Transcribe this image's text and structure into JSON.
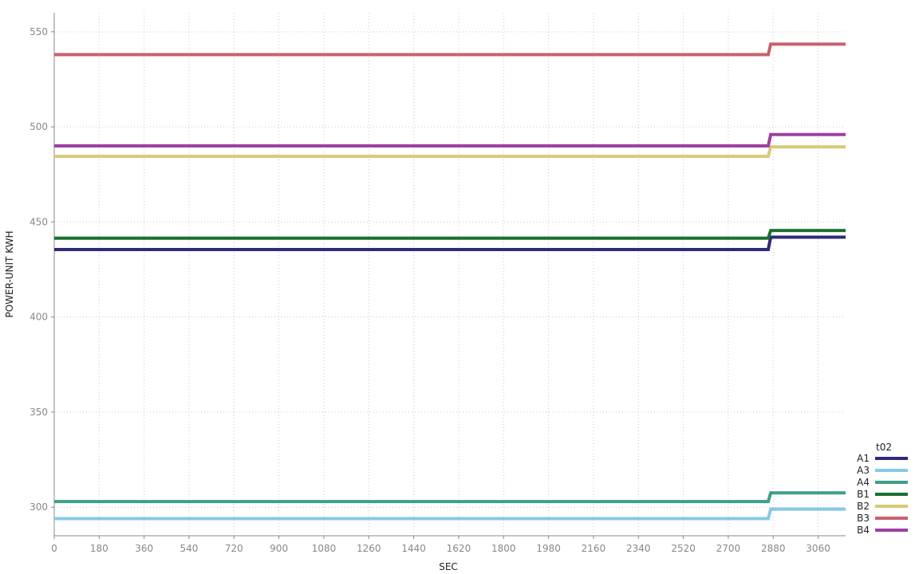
{
  "chart_data": {
    "type": "line",
    "title": "",
    "xlabel": "SEC",
    "ylabel": "POWER-UNIT KWH",
    "xlim": [
      0,
      3170
    ],
    "ylim": [
      285,
      560
    ],
    "x_ticks": [
      0,
      180,
      360,
      540,
      720,
      900,
      1080,
      1260,
      1440,
      1620,
      1800,
      1980,
      2160,
      2340,
      2520,
      2700,
      2880,
      3060
    ],
    "y_ticks": [
      300,
      350,
      400,
      450,
      500,
      550
    ],
    "grid": true,
    "legend": {
      "title": "t02",
      "placement": "bottom-right"
    },
    "series": [
      {
        "name": "A1",
        "color": "#2e2a7a",
        "x": [
          0,
          2860,
          2870,
          3170
        ],
        "values": [
          435.5,
          435.5,
          442,
          442
        ]
      },
      {
        "name": "A3",
        "color": "#87c8ea",
        "x": [
          0,
          2860,
          2870,
          3170
        ],
        "values": [
          294,
          294,
          299,
          299
        ]
      },
      {
        "name": "A4",
        "color": "#3f9e8c",
        "x": [
          0,
          2860,
          2870,
          3170
        ],
        "values": [
          303,
          303,
          307.5,
          307.5
        ]
      },
      {
        "name": "B1",
        "color": "#1a7030",
        "x": [
          0,
          2860,
          2870,
          3170
        ],
        "values": [
          441.5,
          441.5,
          445.5,
          445.5
        ]
      },
      {
        "name": "B2",
        "color": "#d8c97a",
        "x": [
          0,
          2860,
          2870,
          3170
        ],
        "values": [
          484.5,
          484.5,
          489.5,
          489.5
        ]
      },
      {
        "name": "B3",
        "color": "#c9606e",
        "x": [
          0,
          2860,
          2870,
          3170
        ],
        "values": [
          538,
          538,
          543.5,
          543.5
        ]
      },
      {
        "name": "B4",
        "color": "#9c40a0",
        "x": [
          0,
          2860,
          2870,
          3170
        ],
        "values": [
          490,
          490,
          496,
          496
        ]
      }
    ]
  }
}
